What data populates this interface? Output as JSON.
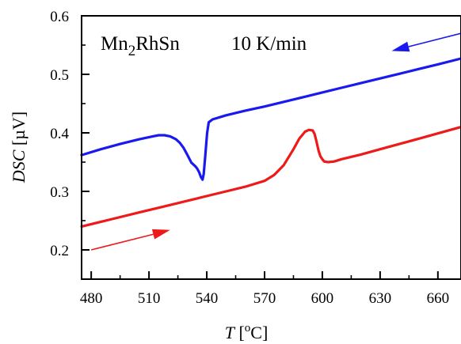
{
  "chart_data": {
    "type": "line",
    "title": "Mn2RhSn    10 K/min",
    "title_parts": {
      "compound_a": "Mn",
      "compound_sub": "2",
      "compound_b": "RhSn",
      "rate": "10 K/min"
    },
    "xlabel": "T [°C]",
    "xlabel_parts": {
      "symbol": "T",
      "open": " [",
      "degree": "o",
      "unit": "C]"
    },
    "ylabel": "DSC [µV]",
    "ylabel_parts": {
      "symbol": "DSC",
      "unit": " [µV]"
    },
    "xlim": [
      475,
      672
    ],
    "ylim": [
      0.15,
      0.6
    ],
    "xticks": [
      480,
      510,
      540,
      570,
      600,
      630,
      660
    ],
    "xtick_labels": [
      "480",
      "510",
      "540",
      "570",
      "600",
      "630",
      "660"
    ],
    "yticks": [
      0.2,
      0.3,
      0.4,
      0.5,
      0.6
    ],
    "ytick_labels": [
      "0.2",
      "0.3",
      "0.4",
      "0.5",
      "0.6"
    ],
    "grid": false,
    "legend": "none",
    "series": [
      {
        "color": "#1a1aee",
        "direction": "cooling",
        "x": [
          475,
          485,
          495,
          505,
          512,
          515,
          518,
          521,
          524,
          526,
          528,
          530,
          532,
          534,
          535,
          536,
          537,
          537.8,
          538.4,
          539.2,
          540.2,
          541,
          543,
          550,
          560,
          570,
          580,
          590,
          600,
          610,
          620,
          630,
          640,
          650,
          660,
          672
        ],
        "y": [
          0.362,
          0.372,
          0.381,
          0.389,
          0.394,
          0.396,
          0.396,
          0.394,
          0.389,
          0.383,
          0.374,
          0.362,
          0.349,
          0.343,
          0.339,
          0.333,
          0.324,
          0.32,
          0.33,
          0.36,
          0.4,
          0.418,
          0.423,
          0.43,
          0.438,
          0.445,
          0.453,
          0.461,
          0.469,
          0.477,
          0.485,
          0.493,
          0.501,
          0.509,
          0.517,
          0.527
        ]
      },
      {
        "color": "#ee1a1a",
        "direction": "heating",
        "x": [
          475,
          490,
          505,
          520,
          535,
          550,
          560,
          570,
          575,
          580,
          585,
          588,
          591,
          593,
          595,
          596,
          597,
          598,
          599,
          600,
          601,
          603,
          606,
          610,
          620,
          630,
          640,
          650,
          660,
          672
        ],
        "y": [
          0.24,
          0.252,
          0.264,
          0.276,
          0.288,
          0.3,
          0.308,
          0.318,
          0.328,
          0.345,
          0.372,
          0.39,
          0.402,
          0.405,
          0.404,
          0.398,
          0.385,
          0.37,
          0.36,
          0.355,
          0.351,
          0.35,
          0.351,
          0.355,
          0.363,
          0.372,
          0.381,
          0.39,
          0.399,
          0.41
        ]
      }
    ],
    "arrows": [
      {
        "series": "cooling",
        "color": "#1a1aee",
        "from": [
          672,
          0.57
        ],
        "to": [
          636,
          0.54
        ]
      },
      {
        "series": "heating",
        "color": "#ee1a1a",
        "from": [
          480,
          0.2
        ],
        "to": [
          521,
          0.234
        ]
      }
    ]
  }
}
